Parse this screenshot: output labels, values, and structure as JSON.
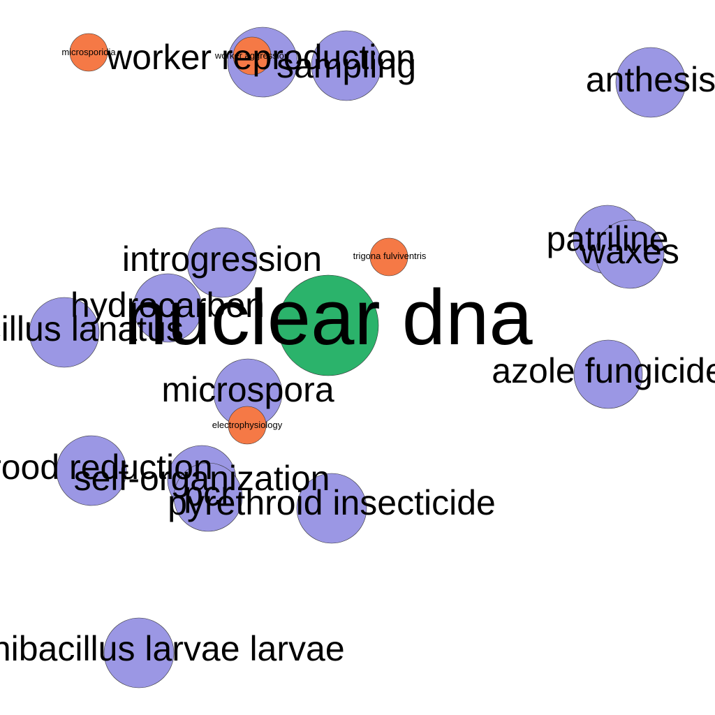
{
  "colors": {
    "background": "#ffffff",
    "center_node": "#2bb36b",
    "topic_node": "#9b97e4",
    "small_node": "#f57946"
  },
  "nodes": [
    {
      "id": "microsporidia",
      "label": "microsporidia",
      "type": "small"
    },
    {
      "id": "worker-reproduction",
      "label": "worker reproduction",
      "type": "topic"
    },
    {
      "id": "worker-aggression",
      "label": "worker aggression",
      "type": "small"
    },
    {
      "id": "sampling",
      "label": "sampling",
      "type": "topic"
    },
    {
      "id": "anthesis",
      "label": "anthesis",
      "type": "topic"
    },
    {
      "id": "patriline",
      "label": "patriline",
      "type": "topic"
    },
    {
      "id": "waxes",
      "label": "waxes",
      "type": "topic"
    },
    {
      "id": "introgression",
      "label": "introgression",
      "type": "topic"
    },
    {
      "id": "trigona-fulviventris",
      "label": "trigona fulviventris",
      "type": "small"
    },
    {
      "id": "hydrocarbon",
      "label": "hydrocarbon",
      "type": "topic"
    },
    {
      "id": "bacillus-lanatus",
      "label": "bacillus lanatus",
      "type": "topic"
    },
    {
      "id": "nuclear-dna",
      "label": "nuclear dna",
      "type": "center"
    },
    {
      "id": "azole-fungicide",
      "label": "azole fungicide",
      "type": "topic"
    },
    {
      "id": "microspora",
      "label": "microspora",
      "type": "topic"
    },
    {
      "id": "electrophysiology",
      "label": "electrophysiology",
      "type": "small"
    },
    {
      "id": "brood-reduction",
      "label": "brood reduction",
      "type": "topic"
    },
    {
      "id": "self-organization",
      "label": "self-organization",
      "type": "topic"
    },
    {
      "id": "pcr",
      "label": "pcr",
      "type": "topic"
    },
    {
      "id": "pyrethroid-insecticide",
      "label": "pyrethroid insecticide",
      "type": "topic"
    },
    {
      "id": "paenibacillus-larvae-larvae",
      "label": "paenibacillus larvae larvae",
      "type": "topic"
    }
  ]
}
